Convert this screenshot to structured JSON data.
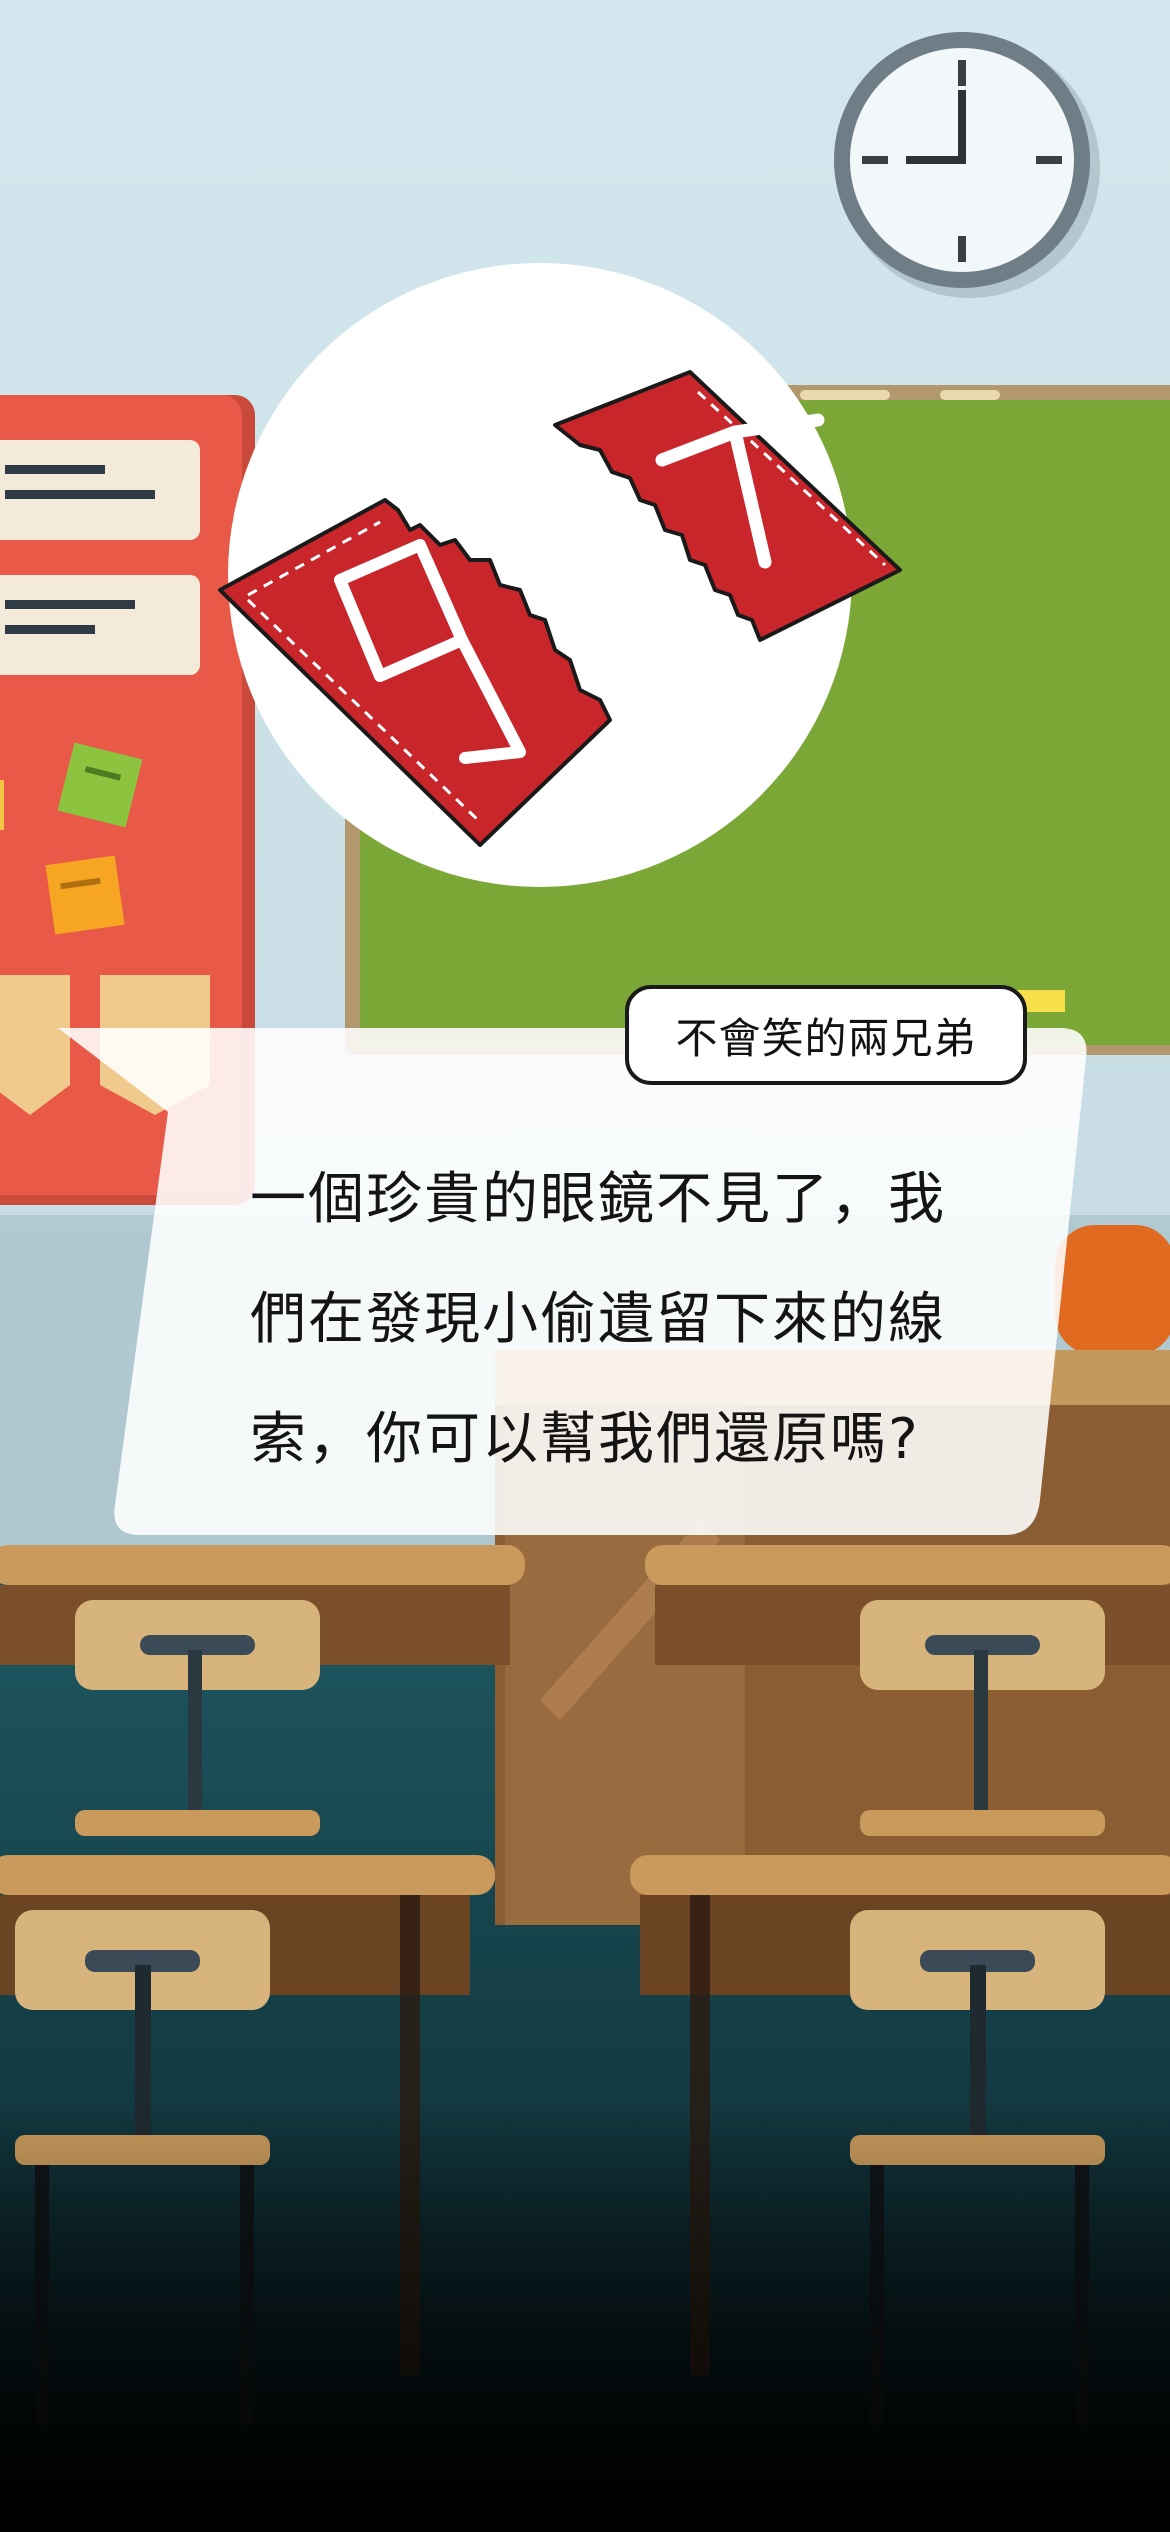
{
  "speaker": {
    "name": "不會笑的兩兄弟"
  },
  "dialog": {
    "lines": [
      "一個珍貴的眼鏡不見了，我",
      "們在發現小偷遺留下來的線",
      "索，你可以幫我們還原嗎?"
    ]
  },
  "clue": {
    "left_piece_digit": "9",
    "right_piece_digit": "7"
  },
  "colors": {
    "wall": "#cfe3ea",
    "chalkboard": "#7aa736",
    "bulletin_board": "#e85a47",
    "ticket_red": "#c8262b",
    "floor": "#1e4f57"
  },
  "icons": {
    "clock": "wall-clock-icon",
    "sticky_notes": "sticky-note-icon"
  }
}
